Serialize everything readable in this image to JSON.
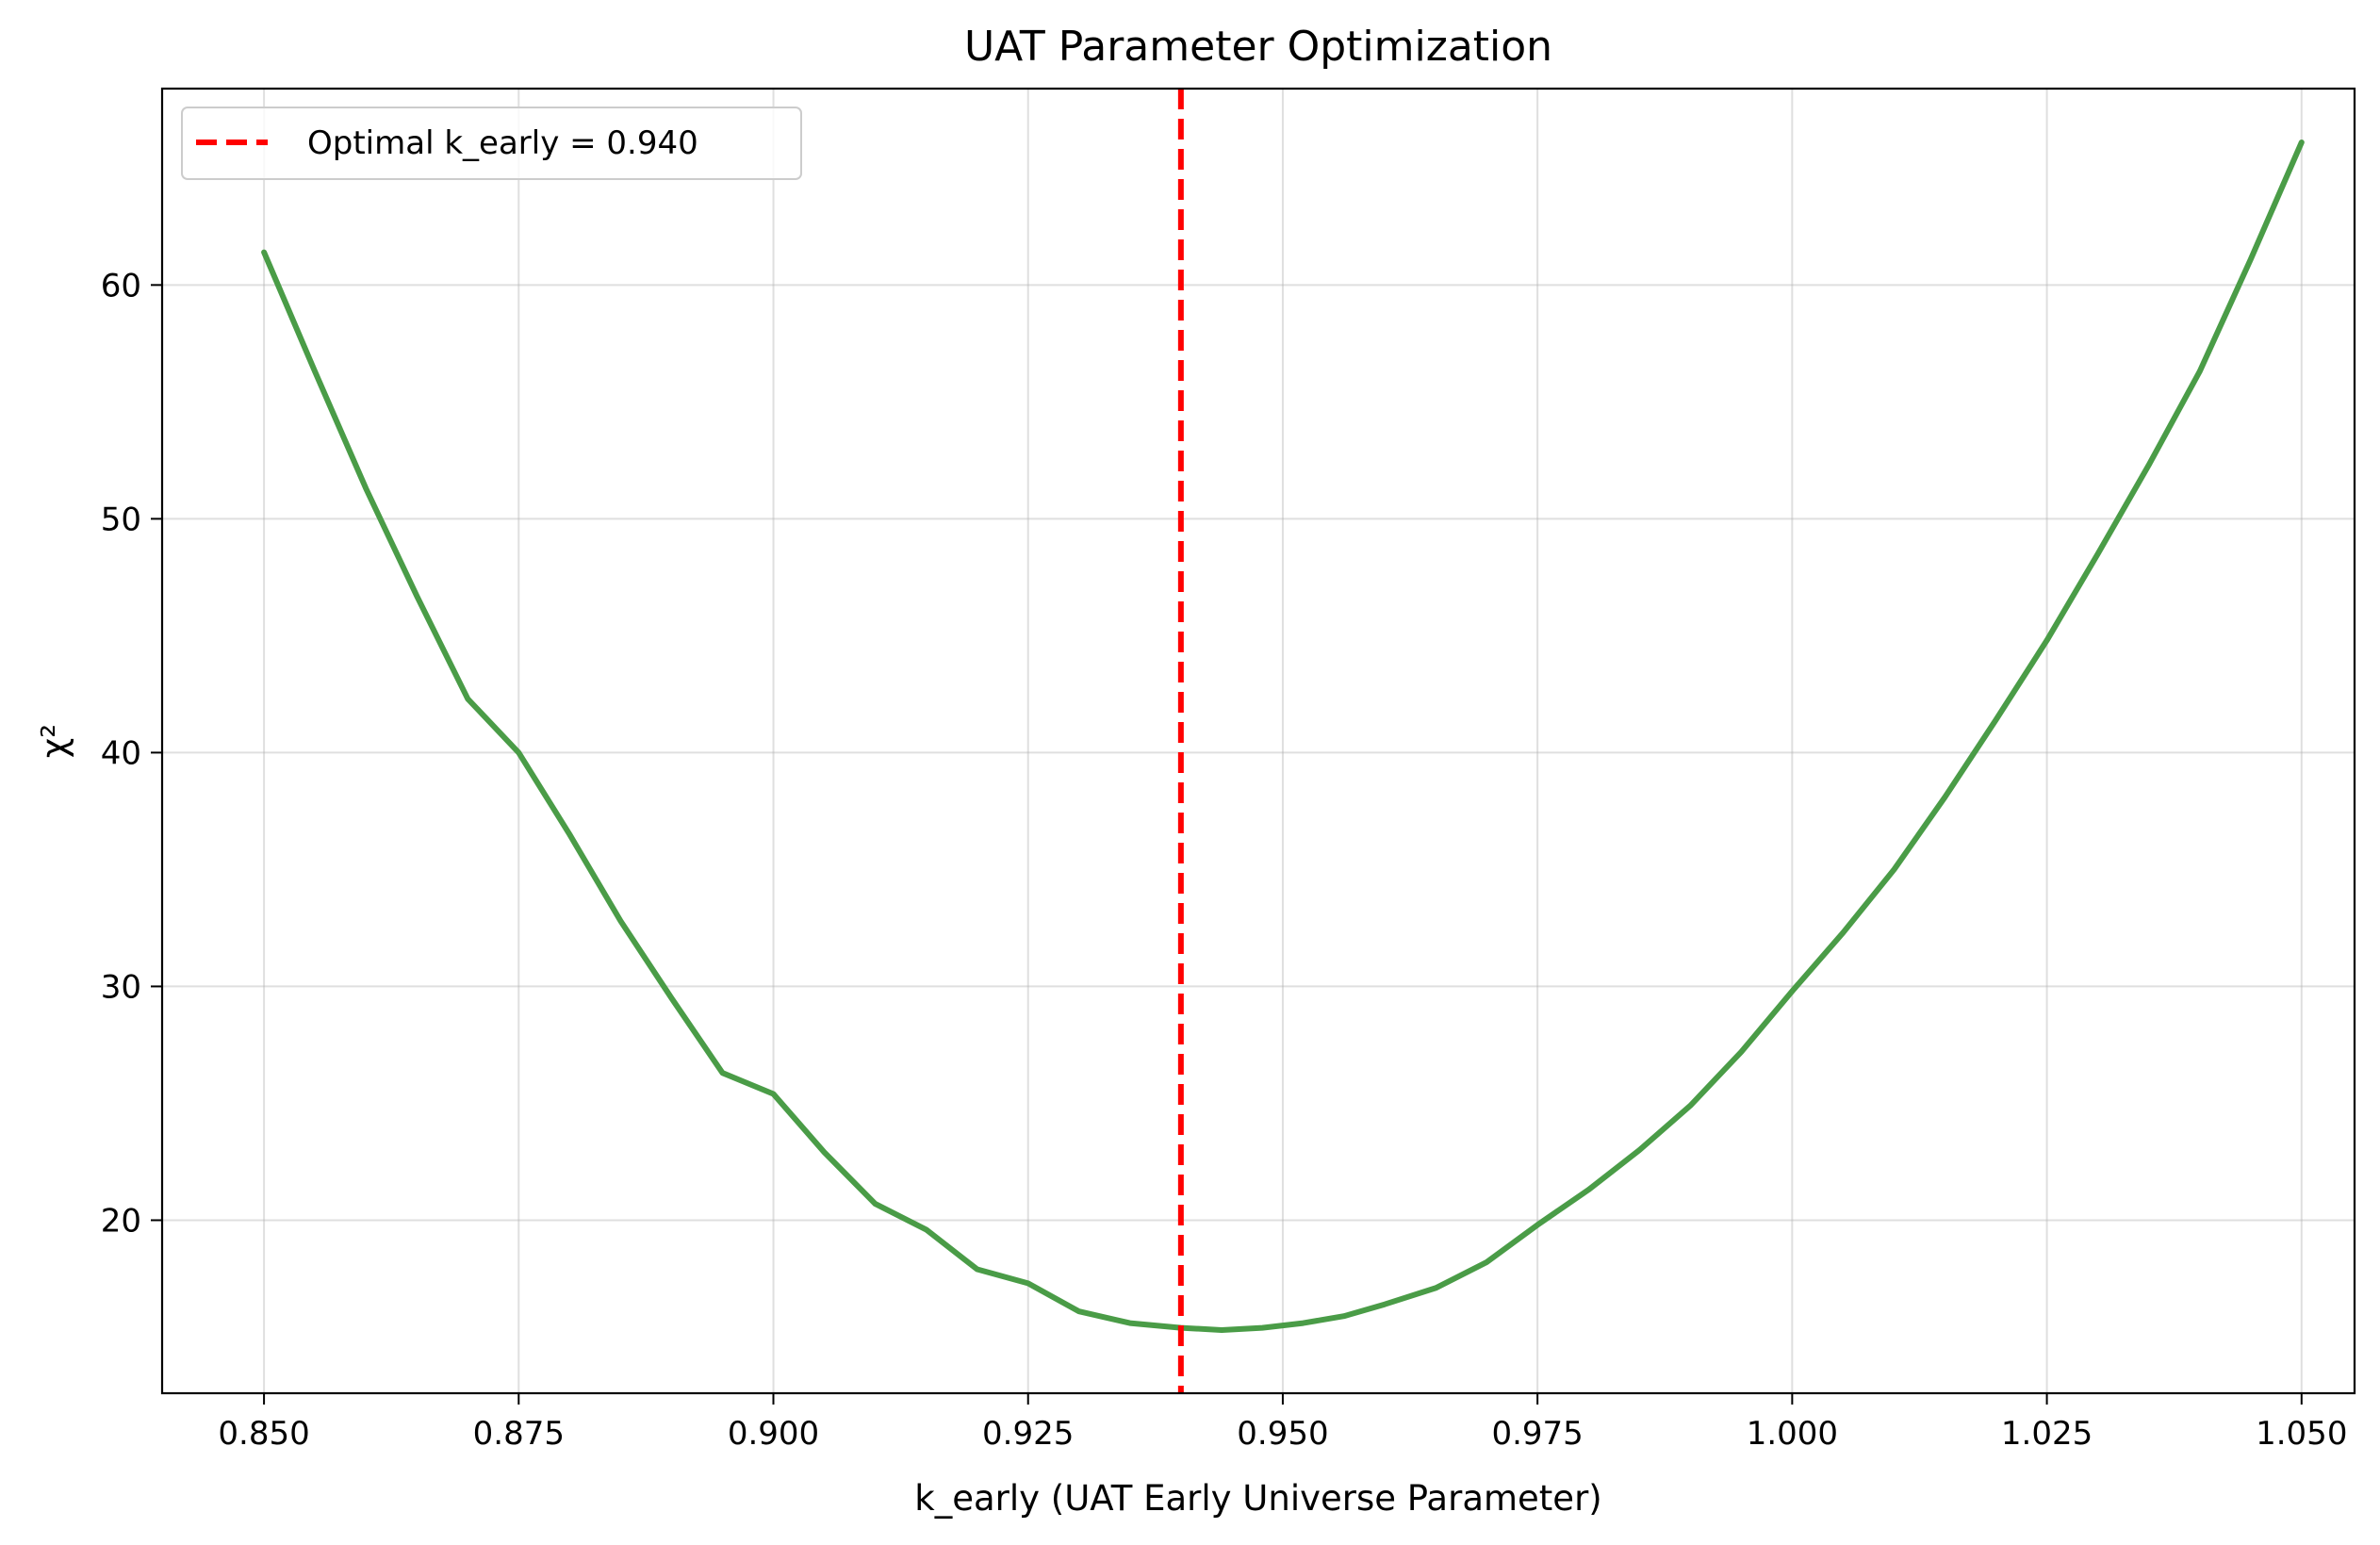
{
  "chart_data": {
    "type": "line",
    "title": "UAT Parameter Optimization",
    "xlabel": "k_early (UAT Early Universe Parameter)",
    "ylabel": "χ²",
    "xlim": [
      0.84,
      1.0552
    ],
    "ylim": [
      12.6,
      68.4
    ],
    "grid": true,
    "legend_position": "top-left",
    "x_ticks": [
      0.85,
      0.875,
      0.9,
      0.925,
      0.95,
      0.975,
      1.0,
      1.025,
      1.05
    ],
    "x_tick_labels": [
      "0.850",
      "0.875",
      "0.900",
      "0.925",
      "0.950",
      "0.975",
      "1.000",
      "1.025",
      "1.050"
    ],
    "y_ticks": [
      20,
      30,
      40,
      50,
      60
    ],
    "y_tick_labels": [
      "20",
      "30",
      "40",
      "50",
      "60"
    ],
    "series": [
      {
        "color": "#4a9c47",
        "x": [
          0.85,
          0.855,
          0.86,
          0.865,
          0.87,
          0.875,
          0.88,
          0.885,
          0.89,
          0.895,
          0.9,
          0.905,
          0.91,
          0.915,
          0.92,
          0.925,
          0.93,
          0.935,
          0.94,
          0.944,
          0.948,
          0.952,
          0.956,
          0.96,
          0.965,
          0.97,
          0.975,
          0.98,
          0.985,
          0.99,
          0.995,
          1.0,
          1.005,
          1.01,
          1.015,
          1.02,
          1.025,
          1.03,
          1.035,
          1.04,
          1.045,
          1.05
        ],
        "y": [
          61.4,
          56.3,
          51.3,
          46.7,
          42.3,
          40.0,
          36.5,
          32.8,
          29.5,
          26.3,
          25.4,
          22.9,
          20.7,
          19.6,
          17.9,
          17.3,
          16.1,
          15.6,
          15.4,
          15.3,
          15.4,
          15.6,
          15.9,
          16.4,
          17.1,
          18.2,
          19.8,
          21.3,
          23.0,
          24.9,
          27.2,
          29.8,
          32.3,
          35.0,
          38.1,
          41.4,
          44.8,
          48.5,
          52.3,
          56.3,
          61.1,
          66.1
        ]
      }
    ],
    "reference_line": {
      "x": 0.94,
      "color": "#ff0000",
      "style": "dashed",
      "label": "Optimal k_early = 0.940"
    }
  }
}
